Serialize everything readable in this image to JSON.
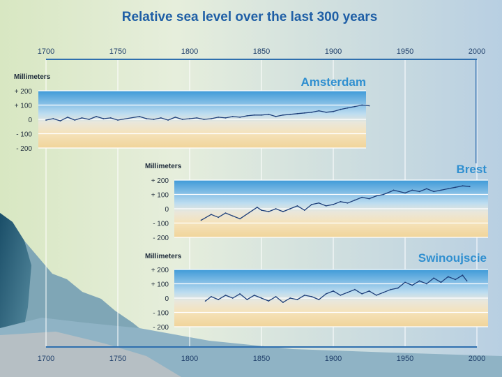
{
  "title": "Relative sea level over the last 300 years",
  "colors": {
    "title": "#1f5fa6",
    "station_label": "#2f8fd0",
    "series_line": "#1d3f7a",
    "band_blue": "#4ba3dc",
    "band_sand": "#f2d9a2"
  },
  "chart_data": [
    {
      "type": "line",
      "station": "Amsterdam",
      "ylabel": "Millimeters",
      "y_ticks": [
        "+ 200",
        "+ 100",
        "0",
        "- 100",
        "- 200"
      ],
      "ylim": [
        -200,
        200
      ],
      "x_ticks_top": [
        "1700",
        "1750",
        "1800",
        "1850",
        "1900",
        "1950",
        "2000"
      ],
      "xlim": [
        1700,
        2000
      ],
      "grid": true,
      "series": [
        {
          "x": [
            1700,
            1705,
            1710,
            1715,
            1720,
            1725,
            1730,
            1735,
            1740,
            1745,
            1750,
            1765,
            1770,
            1775,
            1780,
            1785,
            1790,
            1795,
            1800,
            1805,
            1810,
            1815,
            1820,
            1825,
            1830,
            1835,
            1840,
            1845,
            1850,
            1855,
            1860,
            1865,
            1870,
            1875,
            1880,
            1885,
            1890,
            1895,
            1900,
            1905,
            1910,
            1915,
            1920,
            1925
          ],
          "y": [
            -5,
            5,
            -10,
            15,
            -5,
            10,
            0,
            20,
            5,
            10,
            -5,
            20,
            5,
            0,
            10,
            -5,
            15,
            0,
            5,
            10,
            0,
            5,
            15,
            10,
            20,
            15,
            25,
            30,
            30,
            35,
            20,
            30,
            35,
            40,
            45,
            50,
            60,
            50,
            55,
            70,
            80,
            90,
            100,
            95
          ]
        }
      ]
    },
    {
      "type": "line",
      "station": "Brest",
      "ylabel": "Millimeters",
      "y_ticks": [
        "+ 200",
        "+ 100",
        "0",
        "- 100",
        "- 200"
      ],
      "ylim": [
        -200,
        200
      ],
      "xlim": [
        1700,
        2000
      ],
      "grid": true,
      "series": [
        {
          "x": [
            1808,
            1815,
            1820,
            1825,
            1830,
            1835,
            1847,
            1850,
            1855,
            1860,
            1865,
            1870,
            1875,
            1880,
            1885,
            1890,
            1895,
            1900,
            1905,
            1910,
            1915,
            1920,
            1925,
            1930,
            1935,
            1940,
            1942,
            1950,
            1955,
            1960,
            1965,
            1970,
            1975,
            1980,
            1985,
            1990,
            1995
          ],
          "y": [
            -80,
            -40,
            -60,
            -30,
            -50,
            -70,
            10,
            -10,
            -20,
            0,
            -20,
            0,
            20,
            -10,
            30,
            40,
            20,
            30,
            50,
            40,
            60,
            80,
            70,
            90,
            100,
            120,
            130,
            110,
            130,
            120,
            140,
            120,
            130,
            140,
            150,
            160,
            155
          ]
        }
      ]
    },
    {
      "type": "line",
      "station": "Swinoujscie",
      "ylabel": "Millimeters",
      "y_ticks": [
        "+ 200",
        "+ 100",
        "0",
        "- 100",
        "- 200"
      ],
      "ylim": [
        -200,
        200
      ],
      "x_ticks_bottom": [
        "1700",
        "1750",
        "1800",
        "1850",
        "1900",
        "1950",
        "2000"
      ],
      "xlim": [
        1700,
        2000
      ],
      "grid": true,
      "series": [
        {
          "x": [
            1811,
            1815,
            1820,
            1825,
            1830,
            1835,
            1840,
            1845,
            1850,
            1855,
            1860,
            1865,
            1870,
            1875,
            1880,
            1885,
            1890,
            1895,
            1900,
            1905,
            1910,
            1915,
            1920,
            1925,
            1930,
            1935,
            1940,
            1945,
            1950,
            1955,
            1960,
            1965,
            1970,
            1975,
            1980,
            1985,
            1990,
            1993
          ],
          "y": [
            -20,
            10,
            -10,
            20,
            0,
            30,
            -10,
            20,
            0,
            -20,
            10,
            -30,
            0,
            -10,
            20,
            10,
            -10,
            30,
            50,
            20,
            40,
            60,
            30,
            50,
            20,
            40,
            60,
            70,
            110,
            90,
            120,
            100,
            140,
            110,
            150,
            130,
            160,
            120
          ]
        }
      ]
    }
  ]
}
